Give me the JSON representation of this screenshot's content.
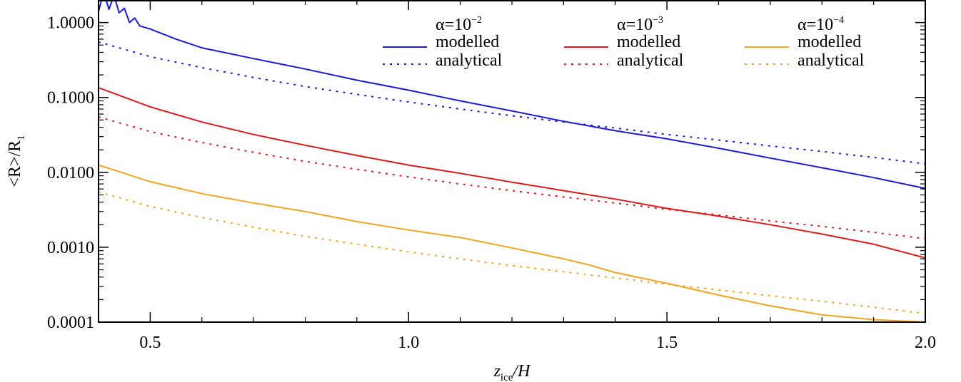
{
  "chart_data": {
    "type": "line",
    "xlabel": {
      "main": "z",
      "sub": "ice",
      "rest": "/H"
    },
    "ylabel": {
      "pre": "<R>/R",
      "sub": "1"
    },
    "xlim": [
      0.4,
      2.0
    ],
    "ylim": [
      0.0001,
      2.0
    ],
    "yscale": "log",
    "x_ticks": [
      0.5,
      1.0,
      1.5,
      2.0
    ],
    "x_tick_labels": [
      "0.5",
      "1.0",
      "1.5",
      "2.0"
    ],
    "y_ticks": [
      1.0,
      0.1,
      0.01,
      0.001,
      0.0001
    ],
    "y_tick_labels": [
      "1.0000",
      "0.1000",
      "0.0100",
      "0.0010",
      "0.0001"
    ],
    "grid": false,
    "legend_position": "top-right",
    "legend_groups": [
      {
        "title_base": "α=10",
        "title_exp": "−2",
        "color": "#1a1adb",
        "modelled_label": "modelled",
        "analytical_label": "analytical"
      },
      {
        "title_base": "α=10",
        "title_exp": "−3",
        "color": "#e0191c",
        "modelled_label": "modelled",
        "analytical_label": "analytical"
      },
      {
        "title_base": "α=10",
        "title_exp": "−4",
        "color": "#f5a21b",
        "modelled_label": "modelled",
        "analytical_label": "analytical"
      }
    ],
    "series": [
      {
        "alpha": "1e-2",
        "kind": "modelled",
        "color": "#1a1adb",
        "style": "solid",
        "x": [
          0.4,
          0.41,
          0.42,
          0.43,
          0.44,
          0.45,
          0.46,
          0.47,
          0.48,
          0.5,
          0.55,
          0.6,
          0.7,
          0.8,
          0.9,
          1.0,
          1.1,
          1.2,
          1.3,
          1.4,
          1.5,
          1.6,
          1.7,
          1.8,
          1.9,
          2.0
        ],
        "y": [
          1.4,
          2.6,
          1.5,
          2.3,
          1.35,
          1.55,
          1.0,
          1.15,
          0.9,
          0.82,
          0.6,
          0.46,
          0.33,
          0.24,
          0.17,
          0.125,
          0.09,
          0.066,
          0.048,
          0.036,
          0.028,
          0.021,
          0.0155,
          0.0115,
          0.0085,
          0.0061
        ]
      },
      {
        "alpha": "1e-2",
        "kind": "analytical",
        "color": "#1a1adb",
        "style": "dotted",
        "x": [
          0.4,
          0.5,
          0.6,
          0.7,
          0.8,
          0.9,
          1.0,
          1.1,
          1.2,
          1.3,
          1.4,
          1.5,
          1.6,
          1.7,
          1.8,
          1.9,
          2.0
        ],
        "y": [
          0.55,
          0.35,
          0.25,
          0.185,
          0.14,
          0.11,
          0.087,
          0.07,
          0.057,
          0.047,
          0.039,
          0.032,
          0.027,
          0.0225,
          0.019,
          0.0158,
          0.013
        ]
      },
      {
        "alpha": "1e-3",
        "kind": "modelled",
        "color": "#e0191c",
        "style": "solid",
        "x": [
          0.4,
          0.5,
          0.6,
          0.7,
          0.8,
          0.9,
          1.0,
          1.1,
          1.2,
          1.3,
          1.4,
          1.5,
          1.6,
          1.7,
          1.8,
          1.9,
          2.0
        ],
        "y": [
          0.135,
          0.075,
          0.047,
          0.032,
          0.023,
          0.0168,
          0.0125,
          0.0097,
          0.0074,
          0.0057,
          0.0044,
          0.0033,
          0.0026,
          0.002,
          0.0015,
          0.0011,
          0.00072
        ]
      },
      {
        "alpha": "1e-3",
        "kind": "analytical",
        "color": "#e0191c",
        "style": "dotted",
        "x": [
          0.4,
          0.5,
          0.6,
          0.7,
          0.8,
          0.9,
          1.0,
          1.1,
          1.2,
          1.3,
          1.4,
          1.5,
          1.6,
          1.7,
          1.8,
          1.9,
          2.0
        ],
        "y": [
          0.055,
          0.035,
          0.025,
          0.0185,
          0.014,
          0.011,
          0.0087,
          0.007,
          0.0057,
          0.0047,
          0.0039,
          0.0032,
          0.0027,
          0.00225,
          0.0019,
          0.00158,
          0.0013
        ]
      },
      {
        "alpha": "1e-4",
        "kind": "modelled",
        "color": "#f5a21b",
        "style": "solid",
        "x": [
          0.4,
          0.5,
          0.6,
          0.7,
          0.8,
          0.9,
          1.0,
          1.1,
          1.2,
          1.3,
          1.35,
          1.4,
          1.5,
          1.6,
          1.7,
          1.8,
          1.9,
          2.0
        ],
        "y": [
          0.0125,
          0.0075,
          0.0052,
          0.0039,
          0.003,
          0.0022,
          0.0017,
          0.00135,
          0.00098,
          0.0007,
          0.00058,
          0.00046,
          0.00033,
          0.00023,
          0.000165,
          0.000125,
          0.000108,
          0.0001
        ]
      },
      {
        "alpha": "1e-4",
        "kind": "analytical",
        "color": "#f5a21b",
        "style": "dotted",
        "x": [
          0.4,
          0.5,
          0.6,
          0.7,
          0.8,
          0.9,
          1.0,
          1.1,
          1.2,
          1.3,
          1.4,
          1.5,
          1.6,
          1.7,
          1.8,
          1.9,
          2.0
        ],
        "y": [
          0.0055,
          0.0035,
          0.0025,
          0.00185,
          0.0014,
          0.0011,
          0.00087,
          0.0007,
          0.00057,
          0.00047,
          0.00039,
          0.00032,
          0.00027,
          0.000225,
          0.00019,
          0.000158,
          0.00013
        ]
      }
    ]
  }
}
